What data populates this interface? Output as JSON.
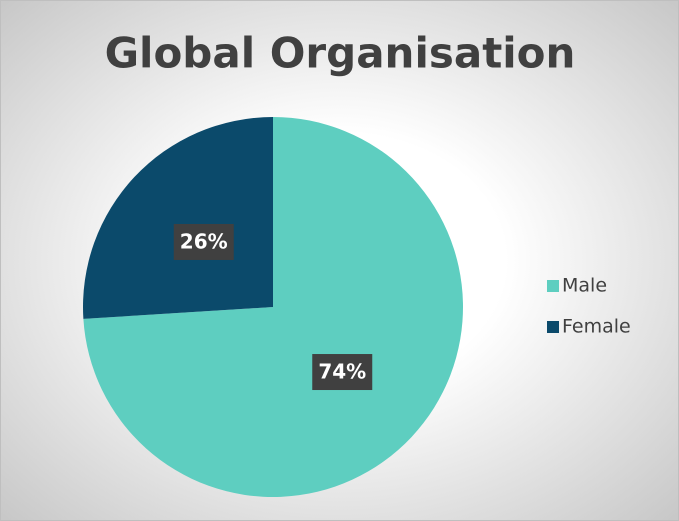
{
  "chart_data": {
    "type": "pie",
    "title": "Global Organisation",
    "categories": [
      "Male",
      "Female"
    ],
    "values": [
      74,
      26
    ],
    "value_labels": [
      "74%",
      "26%"
    ],
    "colors": [
      "#5ecec0",
      "#0b4a6b"
    ],
    "legend": "right"
  }
}
